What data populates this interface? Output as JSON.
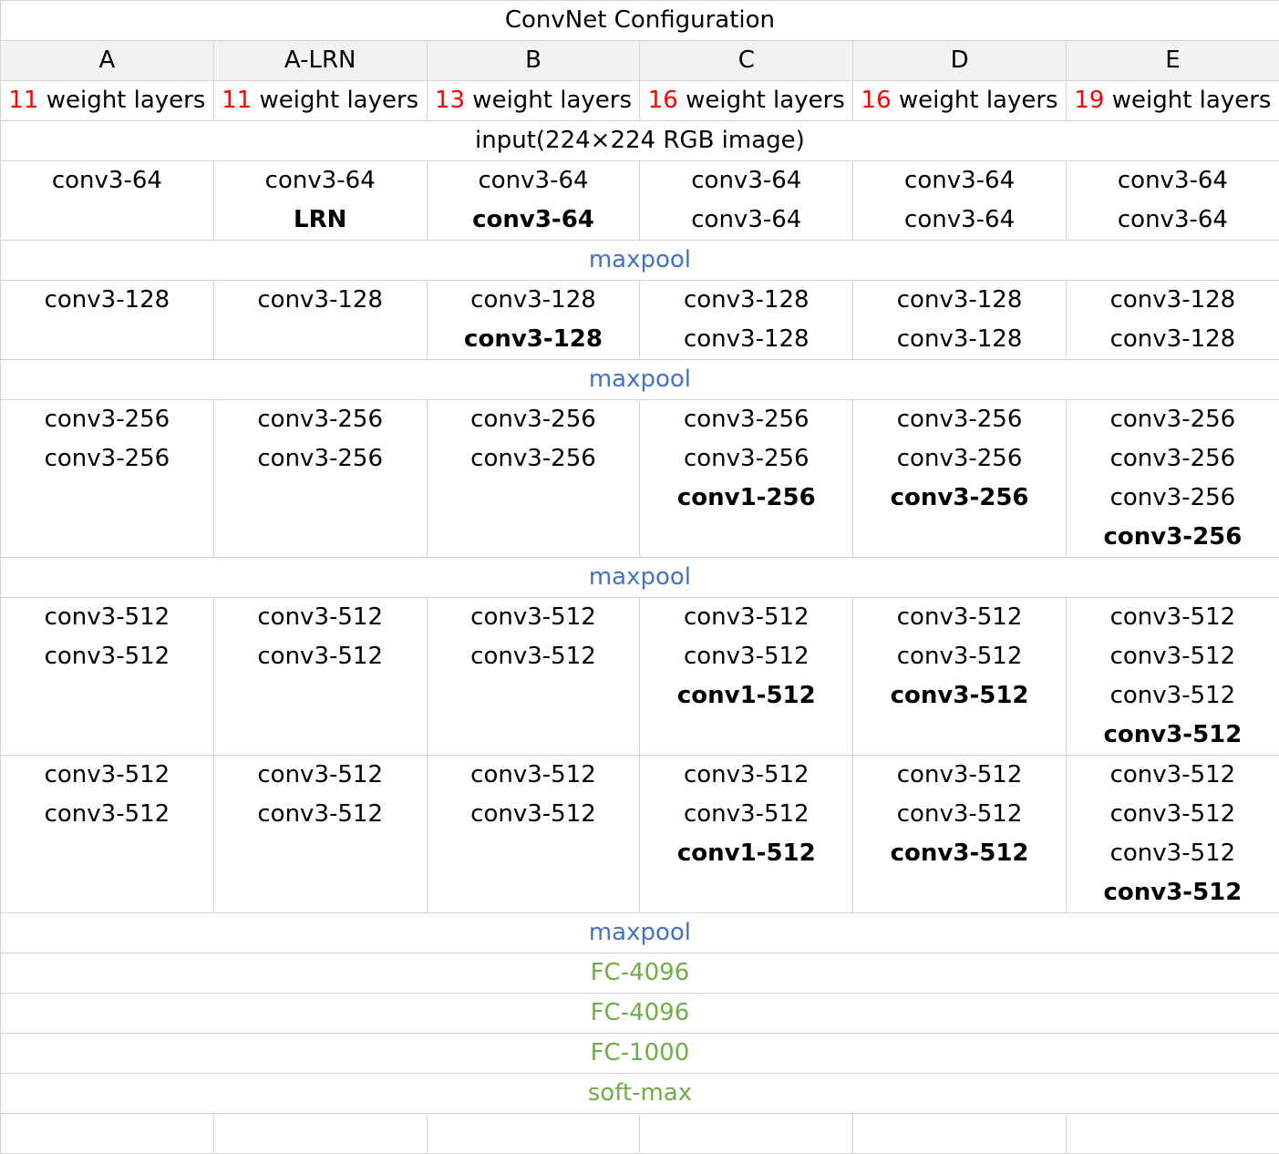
{
  "title": "ConvNet Configuration",
  "columns": [
    {
      "name": "A",
      "count": "11",
      "count_suffix": " weight layers"
    },
    {
      "name": "A-LRN",
      "count": "11",
      "count_suffix": " weight layers"
    },
    {
      "name": "B",
      "count": "13",
      "count_suffix": " weight layers"
    },
    {
      "name": "C",
      "count": "16",
      "count_suffix": " weight layers"
    },
    {
      "name": "D",
      "count": "16",
      "count_suffix": " weight layers"
    },
    {
      "name": "E",
      "count": "19",
      "count_suffix": " weight layers"
    }
  ],
  "input_label": "input(224×224 RGB image)",
  "maxpool_label": "maxpool",
  "block1": [
    [
      {
        "t": "conv3-64",
        "b": false
      }
    ],
    [
      {
        "t": "conv3-64",
        "b": false
      },
      {
        "t": "LRN",
        "b": true
      }
    ],
    [
      {
        "t": "conv3-64",
        "b": false
      },
      {
        "t": "conv3-64",
        "b": true
      }
    ],
    [
      {
        "t": "conv3-64",
        "b": false
      },
      {
        "t": "conv3-64",
        "b": false
      }
    ],
    [
      {
        "t": "conv3-64",
        "b": false
      },
      {
        "t": "conv3-64",
        "b": false
      }
    ],
    [
      {
        "t": "conv3-64",
        "b": false
      },
      {
        "t": "conv3-64",
        "b": false
      }
    ]
  ],
  "block2": [
    [
      {
        "t": "conv3-128",
        "b": false
      }
    ],
    [
      {
        "t": "conv3-128",
        "b": false
      }
    ],
    [
      {
        "t": "conv3-128",
        "b": false
      },
      {
        "t": "conv3-128",
        "b": true
      }
    ],
    [
      {
        "t": "conv3-128",
        "b": false
      },
      {
        "t": "conv3-128",
        "b": false
      }
    ],
    [
      {
        "t": "conv3-128",
        "b": false
      },
      {
        "t": "conv3-128",
        "b": false
      }
    ],
    [
      {
        "t": "conv3-128",
        "b": false
      },
      {
        "t": "conv3-128",
        "b": false
      }
    ]
  ],
  "block3": [
    [
      {
        "t": "conv3-256",
        "b": false
      },
      {
        "t": "conv3-256",
        "b": false
      }
    ],
    [
      {
        "t": "conv3-256",
        "b": false
      },
      {
        "t": "conv3-256",
        "b": false
      }
    ],
    [
      {
        "t": "conv3-256",
        "b": false
      },
      {
        "t": "conv3-256",
        "b": false
      }
    ],
    [
      {
        "t": "conv3-256",
        "b": false
      },
      {
        "t": "conv3-256",
        "b": false
      },
      {
        "t": "conv1-256",
        "b": true
      }
    ],
    [
      {
        "t": "conv3-256",
        "b": false
      },
      {
        "t": "conv3-256",
        "b": false
      },
      {
        "t": "conv3-256",
        "b": true
      }
    ],
    [
      {
        "t": "conv3-256",
        "b": false
      },
      {
        "t": "conv3-256",
        "b": false
      },
      {
        "t": "conv3-256",
        "b": false
      },
      {
        "t": "conv3-256",
        "b": true
      }
    ]
  ],
  "block4": [
    [
      {
        "t": "conv3-512",
        "b": false
      },
      {
        "t": "conv3-512",
        "b": false
      }
    ],
    [
      {
        "t": "conv3-512",
        "b": false
      },
      {
        "t": "conv3-512",
        "b": false
      }
    ],
    [
      {
        "t": "conv3-512",
        "b": false
      },
      {
        "t": "conv3-512",
        "b": false
      }
    ],
    [
      {
        "t": "conv3-512",
        "b": false
      },
      {
        "t": "conv3-512",
        "b": false
      },
      {
        "t": "conv1-512",
        "b": true
      }
    ],
    [
      {
        "t": "conv3-512",
        "b": false
      },
      {
        "t": "conv3-512",
        "b": false
      },
      {
        "t": "conv3-512",
        "b": true
      }
    ],
    [
      {
        "t": "conv3-512",
        "b": false
      },
      {
        "t": "conv3-512",
        "b": false
      },
      {
        "t": "conv3-512",
        "b": false
      },
      {
        "t": "conv3-512",
        "b": true
      }
    ]
  ],
  "block5": [
    [
      {
        "t": "conv3-512",
        "b": false
      },
      {
        "t": "conv3-512",
        "b": false
      }
    ],
    [
      {
        "t": "conv3-512",
        "b": false
      },
      {
        "t": "conv3-512",
        "b": false
      }
    ],
    [
      {
        "t": "conv3-512",
        "b": false
      },
      {
        "t": "conv3-512",
        "b": false
      }
    ],
    [
      {
        "t": "conv3-512",
        "b": false
      },
      {
        "t": "conv3-512",
        "b": false
      },
      {
        "t": "conv1-512",
        "b": true
      }
    ],
    [
      {
        "t": "conv3-512",
        "b": false
      },
      {
        "t": "conv3-512",
        "b": false
      },
      {
        "t": "conv3-512",
        "b": true
      }
    ],
    [
      {
        "t": "conv3-512",
        "b": false
      },
      {
        "t": "conv3-512",
        "b": false
      },
      {
        "t": "conv3-512",
        "b": false
      },
      {
        "t": "conv3-512",
        "b": true
      }
    ]
  ],
  "fc": [
    "FC-4096",
    "FC-4096",
    "FC-1000",
    "soft-max"
  ],
  "colors": {
    "count": "#ff0000",
    "maxpool": "#4472c4",
    "fc": "#70ad47",
    "header_bg": "#f2f2f2",
    "grid": "#d4d4d4"
  }
}
